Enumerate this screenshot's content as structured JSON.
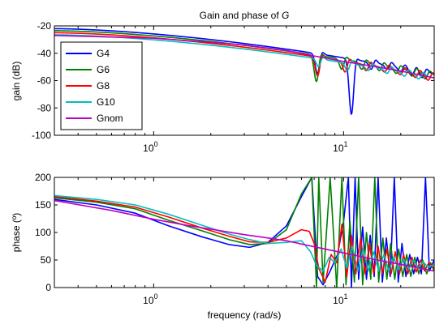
{
  "colors": {
    "G4": "#0000ff",
    "G6": "#008000",
    "G8": "#ff0000",
    "G10": "#00bfbf",
    "Gnom": "#bf00bf",
    "axes": "#000000",
    "background": "#ffffff"
  },
  "chart_data": [
    {
      "type": "line",
      "title": "Gain and phase of G",
      "title_prefix": "Gain and phase of ",
      "title_symbol": "G",
      "xlabel": "",
      "ylabel": "gain (dB)",
      "xscale": "log",
      "xlim": [
        0.3,
        30
      ],
      "ylim": [
        -100,
        -20
      ],
      "yticks": [
        -100,
        -80,
        -60,
        -40,
        -20
      ],
      "ytick_labels": [
        "-100",
        "-80",
        "-60",
        "-40",
        "-20"
      ],
      "xticks": [
        1,
        10
      ],
      "xtick_labels": [
        {
          "base": "10",
          "exp": "0"
        },
        {
          "base": "10",
          "exp": "1"
        }
      ],
      "grid": false,
      "legend": {
        "placement": "left",
        "entries": [
          "G4",
          "G6",
          "G8",
          "G10",
          "Gnom"
        ]
      },
      "series": [
        {
          "name": "G4",
          "color_key": "G4",
          "kind": "modal",
          "dc": -22,
          "base_end": -55,
          "notches": [
            [
              7.3,
              -55
            ],
            [
              11,
              -85
            ],
            [
              14,
              -52
            ],
            [
              17,
              -52
            ],
            [
              20,
              -54
            ],
            [
              23,
              -56
            ],
            [
              26,
              -58
            ]
          ]
        },
        {
          "name": "G6",
          "color_key": "G6",
          "kind": "modal",
          "dc": -23.5,
          "base_end": -56,
          "notches": [
            [
              7.2,
              -61
            ],
            [
              9.8,
              -52
            ],
            [
              12.5,
              -52
            ],
            [
              15.5,
              -53
            ],
            [
              19,
              -55
            ],
            [
              23,
              -57
            ],
            [
              27,
              -59
            ]
          ]
        },
        {
          "name": "G8",
          "color_key": "G8",
          "kind": "modal",
          "dc": -25,
          "base_end": -57,
          "notches": [
            [
              7.3,
              -57
            ],
            [
              10.2,
              -54
            ],
            [
              13.2,
              -53
            ],
            [
              16.5,
              -54
            ],
            [
              20,
              -56
            ],
            [
              24,
              -58
            ],
            [
              28,
              -60
            ]
          ]
        },
        {
          "name": "G10",
          "color_key": "G10",
          "kind": "modal",
          "dc": -26.5,
          "base_end": -58,
          "notches": [
            [
              7.4,
              -50
            ],
            [
              10.5,
              -53
            ],
            [
              13.5,
              -53
            ],
            [
              17,
              -55
            ],
            [
              21,
              -57
            ],
            [
              25,
              -59
            ]
          ]
        },
        {
          "name": "Gnom",
          "color_key": "Gnom",
          "kind": "smooth",
          "x": [
            0.3,
            1,
            2,
            3,
            5,
            7,
            10,
            15,
            20,
            30
          ],
          "y": [
            -27,
            -29,
            -32,
            -34,
            -38,
            -42,
            -46,
            -50,
            -53,
            -58
          ]
        }
      ]
    },
    {
      "type": "line",
      "title": "",
      "xlabel": "frequency (rad/s)",
      "ylabel": "phase (º)",
      "xscale": "log",
      "xlim": [
        0.3,
        30
      ],
      "ylim": [
        0,
        200
      ],
      "yticks": [
        0,
        50,
        100,
        150,
        200
      ],
      "ytick_labels": [
        "0",
        "50",
        "100",
        "150",
        "200"
      ],
      "xticks": [
        1,
        10
      ],
      "xtick_labels": [
        {
          "base": "10",
          "exp": "0"
        },
        {
          "base": "10",
          "exp": "1"
        }
      ],
      "grid": false,
      "series": [
        {
          "name": "G4",
          "color_key": "G4",
          "x": [
            0.3,
            0.5,
            0.8,
            1.2,
            1.8,
            2.5,
            3.2,
            4,
            5,
            6,
            6.8,
            7.3,
            7.8,
            8.5,
            9.3,
            10,
            10.6,
            11,
            11.5,
            12,
            12.6,
            13.2,
            13.8,
            14.5,
            15.2,
            16,
            16.8,
            17.6,
            18.5,
            19.4,
            20.3,
            21.3,
            22.3,
            23.4,
            24.5,
            25.7,
            27,
            28.3,
            30
          ],
          "y": [
            160,
            150,
            135,
            112,
            92,
            78,
            73,
            82,
            112,
            165,
            200,
            20,
            5,
            30,
            60,
            120,
            200,
            0,
            200,
            15,
            110,
            15,
            95,
            20,
            200,
            10,
            90,
            20,
            200,
            10,
            80,
            20,
            60,
            25,
            55,
            25,
            200,
            30,
            50
          ]
        },
        {
          "name": "G6",
          "color_key": "G6",
          "x": [
            0.3,
            0.5,
            0.8,
            1.2,
            1.8,
            2.5,
            3.2,
            4,
            5,
            6,
            6.8,
            7.2,
            7.4,
            7.8,
            8.5,
            9.2,
            9.8,
            10.3,
            10.8,
            11.4,
            12,
            12.6,
            13.2,
            13.9,
            14.6,
            15.3,
            16.1,
            16.9,
            17.7,
            18.6,
            19.5,
            20.5,
            21.5,
            22.6,
            23.7,
            24.9,
            26.1,
            27.4,
            28.7,
            30
          ],
          "y": [
            163,
            155,
            143,
            122,
            103,
            87,
            78,
            80,
            105,
            170,
            200,
            0,
            200,
            10,
            200,
            0,
            200,
            5,
            120,
            10,
            200,
            5,
            100,
            15,
            200,
            10,
            90,
            15,
            80,
            15,
            70,
            20,
            60,
            20,
            55,
            25,
            50,
            25,
            45,
            30
          ]
        },
        {
          "name": "G8",
          "color_key": "G8",
          "x": [
            0.3,
            0.5,
            0.8,
            1.2,
            1.8,
            2.5,
            3.2,
            4,
            5,
            6,
            6.6,
            7,
            7.4,
            8,
            8.6,
            9.2,
            9.8,
            10.4,
            11,
            11.6,
            12.3,
            13,
            13.7,
            14.4,
            15.2,
            16,
            16.9,
            17.8,
            18.7,
            19.7,
            20.7,
            21.8,
            22.9,
            24.1,
            25.4,
            26.7,
            28.1,
            30
          ],
          "y": [
            165,
            157,
            146,
            128,
            108,
            93,
            83,
            82,
            90,
            105,
            102,
            80,
            35,
            10,
            60,
            45,
            115,
            20,
            95,
            25,
            90,
            25,
            80,
            25,
            75,
            25,
            70,
            25,
            65,
            25,
            60,
            25,
            55,
            28,
            50,
            30,
            45,
            35
          ]
        },
        {
          "name": "G10",
          "color_key": "G10",
          "x": [
            0.3,
            0.5,
            0.8,
            1.2,
            1.8,
            2.5,
            3.2,
            4,
            5,
            6,
            6.7,
            7.2,
            7.8,
            8.4,
            9,
            9.7,
            10.4,
            11.1,
            11.9,
            12.7,
            13.5,
            14.4,
            15.3,
            16.3,
            17.3,
            18.4,
            19.5,
            20.7,
            22,
            23.3,
            24.7,
            26.2,
            27.8,
            30
          ],
          "y": [
            167,
            160,
            150,
            133,
            113,
            97,
            87,
            80,
            82,
            85,
            65,
            40,
            30,
            55,
            45,
            70,
            35,
            75,
            30,
            70,
            30,
            65,
            30,
            60,
            30,
            55,
            32,
            52,
            33,
            50,
            35,
            47,
            37,
            42
          ]
        },
        {
          "name": "Gnom",
          "color_key": "Gnom",
          "x": [
            0.3,
            0.6,
            1,
            1.5,
            2,
            3,
            4,
            5,
            7,
            10,
            15,
            20,
            30
          ],
          "y": [
            158,
            140,
            124,
            113,
            106,
            96,
            90,
            85,
            74,
            63,
            50,
            42,
            30
          ]
        }
      ]
    }
  ]
}
